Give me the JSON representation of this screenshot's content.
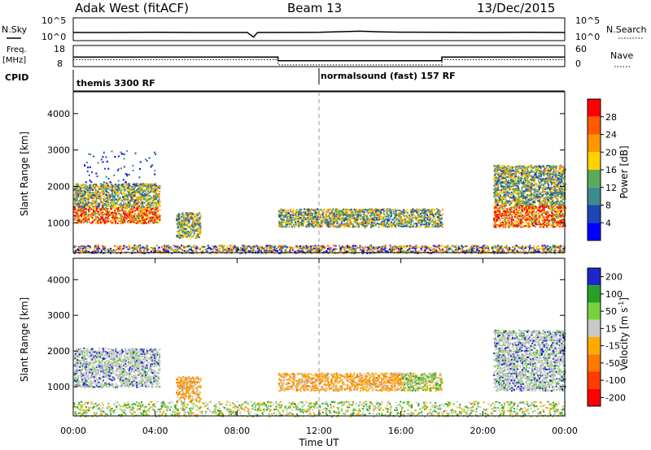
{
  "header": {
    "title": "Adak West (fitACF)",
    "beam": "Beam 13",
    "date": "13/Dec/2015"
  },
  "nsky_panel": {
    "left_label": "N.Sky",
    "right_label": "N.Search",
    "left_ticks": [
      "10^5",
      "10^0"
    ],
    "right_ticks": [
      "10^5",
      "10^0"
    ]
  },
  "freq_panel": {
    "left_label_1": "Freq.",
    "left_label_2": "[MHz]",
    "right_label": "Nave",
    "left_ticks": [
      "18",
      "8"
    ],
    "right_ticks": [
      "60",
      "0"
    ]
  },
  "cpid_panel": {
    "label": "CPID",
    "segments": [
      {
        "label": "themis 3300 RF",
        "start_hour": 0
      },
      {
        "label": "normalsound (fast) 157 RF",
        "start_hour": 12
      }
    ]
  },
  "power_colorbar": {
    "label": "Power [dB]",
    "ticks": [
      "28",
      "24",
      "20",
      "16",
      "12",
      "8",
      "4"
    ],
    "colors": [
      "#ff0000",
      "#ff5a00",
      "#ff9600",
      "#ffd200",
      "#5aaa5a",
      "#3c8c8c",
      "#1e46b4",
      "#0000ff"
    ]
  },
  "velocity_colorbar": {
    "label_base": "Velocity [m s",
    "label_sup": "-1",
    "label_end": "]",
    "ticks": [
      "200",
      "100",
      "50",
      "15",
      "-15",
      "-50",
      "-100",
      "-200"
    ],
    "colors": [
      "#1e28c8",
      "#28a028",
      "#78d23c",
      "#c8c8c8",
      "#ffaa00",
      "#ff7800",
      "#ff3c00",
      "#ff0000"
    ]
  },
  "chart_data": {
    "type": "heatmap",
    "xlabel": "Time UT",
    "x_ticks": [
      "00:00",
      "04:00",
      "08:00",
      "12:00",
      "16:00",
      "20:00",
      "00:00"
    ],
    "xlim_hours": [
      0,
      24
    ],
    "ylabel": "Slant Range [km]",
    "y_ticks": [
      1000,
      2000,
      3000,
      4000
    ],
    "ylim": [
      180,
      4600
    ],
    "marker_hour": 12,
    "nsky_trace": [
      [
        0,
        0.5
      ],
      [
        2,
        0.5
      ],
      [
        4,
        0.55
      ],
      [
        6,
        0.5
      ],
      [
        8.5,
        0.5
      ],
      [
        8.8,
        -0.9
      ],
      [
        9.0,
        0.5
      ],
      [
        12,
        0.55
      ],
      [
        14,
        0.9
      ],
      [
        15,
        0.7
      ],
      [
        16,
        0.6
      ],
      [
        18,
        0.55
      ],
      [
        20,
        0.5
      ],
      [
        22,
        0.55
      ],
      [
        24,
        0.5
      ]
    ],
    "freq_trace": [
      [
        0,
        12.5
      ],
      [
        10,
        12.5
      ],
      [
        10,
        10.8
      ],
      [
        18,
        10.8
      ],
      [
        18,
        12.5
      ],
      [
        24,
        12.5
      ]
    ],
    "nave_trace": [
      [
        0,
        20
      ],
      [
        10,
        20
      ],
      [
        10,
        5
      ],
      [
        18,
        5
      ],
      [
        18,
        20
      ],
      [
        24,
        20
      ]
    ],
    "power_regions": [
      {
        "t0": 0.0,
        "t1": 4.2,
        "r0": 1000,
        "r1": 1450,
        "level": "high"
      },
      {
        "t0": 0.0,
        "t1": 4.2,
        "r0": 1450,
        "r1": 2100,
        "level": "mid"
      },
      {
        "t0": 0.5,
        "t1": 4.0,
        "r0": 2100,
        "r1": 3000,
        "level": "low"
      },
      {
        "t0": 5.0,
        "t1": 6.2,
        "r0": 600,
        "r1": 1300,
        "level": "mid"
      },
      {
        "t0": 10.0,
        "t1": 18.0,
        "r0": 900,
        "r1": 1400,
        "level": "mid"
      },
      {
        "t0": 20.5,
        "t1": 24.0,
        "r0": 900,
        "r1": 1500,
        "level": "high"
      },
      {
        "t0": 20.5,
        "t1": 24.0,
        "r0": 1500,
        "r1": 2600,
        "level": "mid"
      },
      {
        "t0": 0.0,
        "t1": 24.0,
        "r0": 180,
        "r1": 400,
        "level": "ground"
      }
    ],
    "velocity_regions": [
      {
        "t0": 0.0,
        "t1": 4.2,
        "r0": 1000,
        "r1": 2100,
        "class": "ground"
      },
      {
        "t0": 5.0,
        "t1": 6.2,
        "r0": 600,
        "r1": 1300,
        "class": "negative"
      },
      {
        "t0": 10.0,
        "t1": 16.0,
        "r0": 900,
        "r1": 1400,
        "class": "negative"
      },
      {
        "t0": 16.0,
        "t1": 18.0,
        "r0": 900,
        "r1": 1400,
        "class": "mixed"
      },
      {
        "t0": 20.5,
        "t1": 24.0,
        "r0": 900,
        "r1": 2600,
        "class": "ground"
      },
      {
        "t0": 0.0,
        "t1": 24.0,
        "r0": 180,
        "r1": 600,
        "class": "positive"
      }
    ]
  }
}
